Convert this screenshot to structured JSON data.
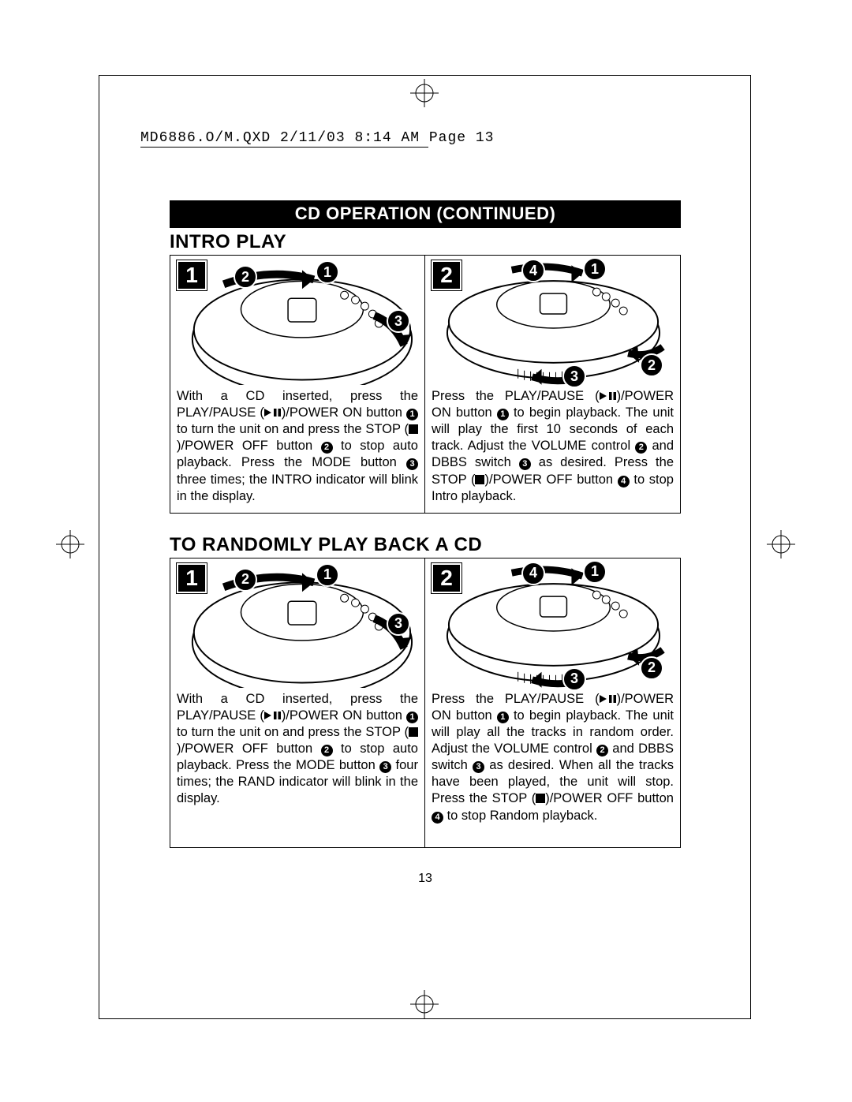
{
  "header": {
    "imprint": "MD6886.O/M.QXD  2/11/03  8:14 AM  Page 13"
  },
  "title_bar": "CD OPERATION (CONTINUED)",
  "page_number": "13",
  "colors": {
    "bg": "#ffffff",
    "fg": "#000000",
    "title_bar_bg": "#000000",
    "title_bar_fg": "#ffffff"
  },
  "sections": [
    {
      "heading": "INTRO PLAY",
      "panels": [
        {
          "step_number": "1",
          "diagram_variant": "top",
          "callouts": [
            "2",
            "1",
            "3"
          ],
          "text_segments": [
            {
              "t": "With a CD inserted, press the PLAY/PAUSE ("
            },
            {
              "glyph": "play-pause"
            },
            {
              "t": ")/POWER ON button "
            },
            {
              "circ": "1"
            },
            {
              "t": " to turn the unit on and press the STOP ("
            },
            {
              "glyph": "stop"
            },
            {
              "t": ")/POWER OFF button "
            },
            {
              "circ": "2"
            },
            {
              "t": " to stop auto playback. Press the MODE button "
            },
            {
              "circ": "3"
            },
            {
              "t": " three times; the INTRO indicator will blink in the display."
            }
          ]
        },
        {
          "step_number": "2",
          "diagram_variant": "side",
          "callouts": [
            "4",
            "1",
            "3",
            "2"
          ],
          "text_segments": [
            {
              "t": "Press the PLAY/PAUSE ("
            },
            {
              "glyph": "play-pause"
            },
            {
              "t": ")/POWER ON button "
            },
            {
              "circ": "1"
            },
            {
              "t": " to begin playback. The unit will play the first 10 seconds of each track. Adjust the VOLUME control "
            },
            {
              "circ": "2"
            },
            {
              "t": " and DBBS switch "
            },
            {
              "circ": "3"
            },
            {
              "t": " as desired. Press the STOP ("
            },
            {
              "glyph": "stop"
            },
            {
              "t": ")/POWER OFF button "
            },
            {
              "circ": "4"
            },
            {
              "t": " to stop Intro playback."
            }
          ]
        }
      ]
    },
    {
      "heading": "TO RANDOMLY PLAY BACK A CD",
      "panels": [
        {
          "step_number": "1",
          "diagram_variant": "top",
          "callouts": [
            "2",
            "1",
            "3"
          ],
          "text_segments": [
            {
              "t": "With a CD inserted, press the PLAY/PAUSE ("
            },
            {
              "glyph": "play-pause"
            },
            {
              "t": ")/POWER ON button "
            },
            {
              "circ": "1"
            },
            {
              "t": " to turn the unit on and press the STOP ("
            },
            {
              "glyph": "stop"
            },
            {
              "t": ")/POWER OFF button "
            },
            {
              "circ": "2"
            },
            {
              "t": " to stop auto playback. Press the MODE button "
            },
            {
              "circ": "3"
            },
            {
              "t": " four times; the RAND indicator will blink in the display."
            }
          ]
        },
        {
          "step_number": "2",
          "diagram_variant": "side",
          "callouts": [
            "4",
            "1",
            "3",
            "2"
          ],
          "text_segments": [
            {
              "t": "Press the PLAY/PAUSE ("
            },
            {
              "glyph": "play-pause"
            },
            {
              "t": ")/POWER ON button "
            },
            {
              "circ": "1"
            },
            {
              "t": " to begin playback. The unit will play all the tracks in random order. Adjust the VOLUME control "
            },
            {
              "circ": "2"
            },
            {
              "t": " and DBBS switch "
            },
            {
              "circ": "3"
            },
            {
              "t": " as desired. When all the tracks have been played, the unit will stop. Press the STOP ("
            },
            {
              "glyph": "stop"
            },
            {
              "t": ")/POWER OFF button "
            },
            {
              "circ": "4"
            },
            {
              "t": " to stop Random playback."
            }
          ]
        }
      ]
    }
  ]
}
